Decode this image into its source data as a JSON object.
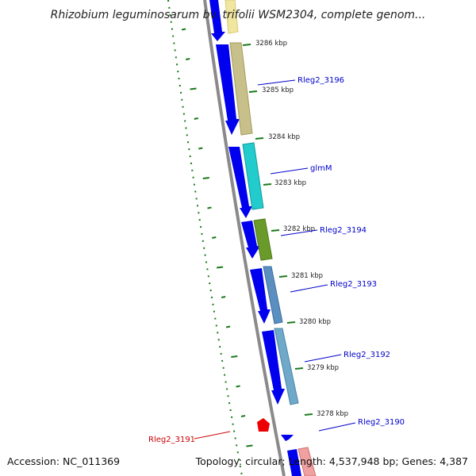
{
  "title": "Rhizobium leguminosarum bv. trifolii WSM2304, complete genom...",
  "accession": "Accession: NC_011369",
  "summary": "Topology: circular; Length: 4,537,948 bp; Genes: 4,387",
  "colors": {
    "backbone": "#8a8a8a",
    "cds": "#0000ee",
    "reverse": "#ee0000",
    "forward_label": "#0000cc",
    "reverse_label": "#cc0000",
    "tick": "#1a7a1a",
    "ring_bg": "#ffffff"
  },
  "ticks": [
    {
      "label": "3286 kbp"
    },
    {
      "label": "3285 kbp"
    },
    {
      "label": "3284 kbp"
    },
    {
      "label": "3283 kbp"
    },
    {
      "label": "3282 kbp"
    },
    {
      "label": "3281 kbp"
    },
    {
      "label": "3280 kbp"
    },
    {
      "label": "3279 kbp"
    },
    {
      "label": "3278 kbp"
    }
  ],
  "genes": [
    {
      "label": "Rleg2_3196",
      "strand": "forward"
    },
    {
      "label": "glmM",
      "strand": "forward"
    },
    {
      "label": "Rleg2_3194",
      "strand": "forward"
    },
    {
      "label": "Rleg2_3193",
      "strand": "forward"
    },
    {
      "label": "Rleg2_3192",
      "strand": "forward"
    },
    {
      "label": "Rleg2_3190",
      "strand": "forward"
    },
    {
      "label": "Rleg2_3191",
      "strand": "reverse"
    }
  ]
}
